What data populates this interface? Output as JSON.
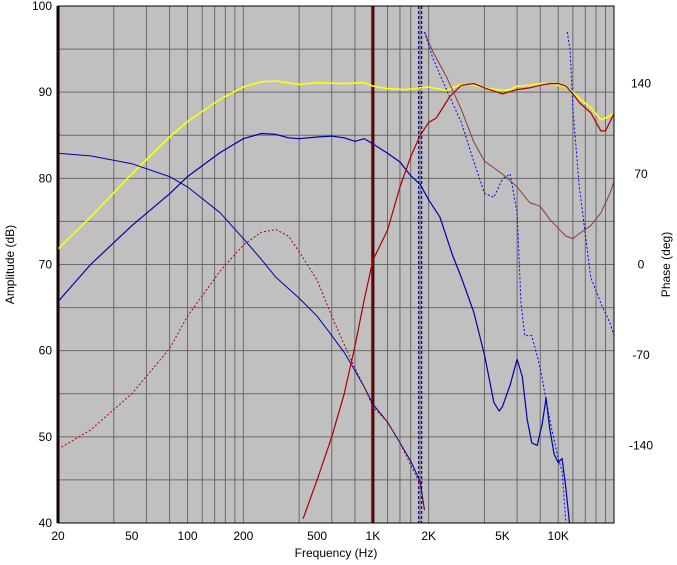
{
  "chart_data": {
    "type": "line",
    "xlabel": "Frequency (Hz)",
    "ylabel": "Amplitude (dB)",
    "y2label": "Phase (deg)",
    "x_scale": "log",
    "xlim": [
      20,
      20000
    ],
    "ylim": [
      40,
      100
    ],
    "y2lim": [
      -200,
      200
    ],
    "grid": true,
    "plot_background": "#c0c0c0",
    "x_ticks": [
      {
        "value": 20,
        "label": "20"
      },
      {
        "value": 50,
        "label": "50"
      },
      {
        "value": 100,
        "label": "100"
      },
      {
        "value": 200,
        "label": "200"
      },
      {
        "value": 500,
        "label": "500"
      },
      {
        "value": 1000,
        "label": "1K"
      },
      {
        "value": 2000,
        "label": "2K"
      },
      {
        "value": 5000,
        "label": "5K"
      },
      {
        "value": 10000,
        "label": "10K"
      }
    ],
    "y_ticks": [
      {
        "value": 40,
        "label": "40"
      },
      {
        "value": 50,
        "label": "50"
      },
      {
        "value": 60,
        "label": "60"
      },
      {
        "value": 70,
        "label": "70"
      },
      {
        "value": 80,
        "label": "80"
      },
      {
        "value": 90,
        "label": "90"
      },
      {
        "value": 100,
        "label": "100"
      }
    ],
    "y2_ticks": [
      {
        "value": 140,
        "label": "140"
      },
      {
        "value": 70,
        "label": "70"
      },
      {
        "value": 0,
        "label": "0"
      },
      {
        "value": -70,
        "label": "-70"
      },
      {
        "value": -140,
        "label": "-140"
      }
    ],
    "vertical_markers": [
      {
        "x": 20,
        "color": "#8b0000"
      },
      {
        "x": 1000,
        "color": "#8b0000"
      },
      {
        "x": 1800,
        "color": "#00008b",
        "dashed": true
      }
    ],
    "series": [
      {
        "color": "#ffff00",
        "axis": "left",
        "style": "solid",
        "width": 1.6,
        "points": [
          [
            20,
            71.8
          ],
          [
            30,
            75.5
          ],
          [
            50,
            80.5
          ],
          [
            80,
            84.8
          ],
          [
            100,
            86.6
          ],
          [
            150,
            89.2
          ],
          [
            200,
            90.6
          ],
          [
            250,
            91.2
          ],
          [
            300,
            91.3
          ],
          [
            400,
            90.9
          ],
          [
            500,
            91.1
          ],
          [
            700,
            91.0
          ],
          [
            900,
            91.1
          ],
          [
            1000,
            90.7
          ],
          [
            1200,
            90.4
          ],
          [
            1500,
            90.3
          ],
          [
            2000,
            90.6
          ],
          [
            2500,
            90.2
          ],
          [
            3000,
            90.9
          ],
          [
            3500,
            90.8
          ],
          [
            4000,
            90.5
          ],
          [
            5000,
            90.2
          ],
          [
            5500,
            90.3
          ],
          [
            6000,
            90.7
          ],
          [
            7000,
            90.8
          ],
          [
            8000,
            91.0
          ],
          [
            9000,
            91.0
          ],
          [
            10000,
            90.8
          ],
          [
            11000,
            90.6
          ],
          [
            12000,
            90.0
          ],
          [
            13000,
            89.3
          ],
          [
            15000,
            88.2
          ],
          [
            17000,
            86.8
          ],
          [
            18000,
            87.0
          ],
          [
            20000,
            87.5
          ]
        ]
      },
      {
        "color": "#0000aa",
        "axis": "left",
        "style": "solid",
        "width": 1.2,
        "points": [
          [
            20,
            65.7
          ],
          [
            30,
            70.0
          ],
          [
            50,
            74.5
          ],
          [
            80,
            78.2
          ],
          [
            100,
            80.2
          ],
          [
            150,
            83.0
          ],
          [
            200,
            84.6
          ],
          [
            250,
            85.2
          ],
          [
            300,
            85.1
          ],
          [
            350,
            84.7
          ],
          [
            400,
            84.6
          ],
          [
            500,
            84.8
          ],
          [
            600,
            84.9
          ],
          [
            700,
            84.7
          ],
          [
            800,
            84.3
          ],
          [
            900,
            84.6
          ],
          [
            1000,
            84.0
          ],
          [
            1200,
            82.9
          ],
          [
            1400,
            81.9
          ],
          [
            1600,
            80.3
          ],
          [
            1800,
            79.3
          ],
          [
            2000,
            77.5
          ],
          [
            2300,
            75.5
          ],
          [
            2700,
            71.0
          ],
          [
            3000,
            68.5
          ],
          [
            3500,
            64.5
          ],
          [
            4000,
            59.5
          ],
          [
            4500,
            54.0
          ],
          [
            4800,
            53.0
          ],
          [
            5000,
            53.5
          ],
          [
            5500,
            56.0
          ],
          [
            6000,
            59.0
          ],
          [
            6400,
            57.0
          ],
          [
            6800,
            52.0
          ],
          [
            7200,
            49.3
          ],
          [
            7700,
            49.0
          ],
          [
            8200,
            51.5
          ],
          [
            8600,
            54.5
          ],
          [
            9000,
            51.0
          ],
          [
            9500,
            48.0
          ],
          [
            10000,
            47.0
          ],
          [
            10500,
            47.5
          ],
          [
            11000,
            44.0
          ],
          [
            11500,
            40.0
          ]
        ]
      },
      {
        "color": "#0000aa",
        "axis": "right",
        "style": "solid",
        "width": 1.0,
        "points": [
          [
            20,
            86
          ],
          [
            30,
            84
          ],
          [
            50,
            78
          ],
          [
            80,
            68
          ],
          [
            100,
            60
          ],
          [
            150,
            40
          ],
          [
            200,
            20
          ],
          [
            250,
            4
          ],
          [
            300,
            -10
          ],
          [
            400,
            -26
          ],
          [
            500,
            -40
          ],
          [
            600,
            -55
          ],
          [
            700,
            -68
          ],
          [
            800,
            -82
          ],
          [
            900,
            -95
          ],
          [
            1000,
            -108
          ],
          [
            1200,
            -122
          ],
          [
            1400,
            -138
          ],
          [
            1600,
            -152
          ],
          [
            1800,
            -168
          ],
          [
            1900,
            -190
          ]
        ]
      },
      {
        "color": "#aa0000",
        "axis": "right",
        "style": "dashed",
        "width": 1.0,
        "points": [
          [
            20,
            -143
          ],
          [
            30,
            -128
          ],
          [
            50,
            -100
          ],
          [
            80,
            -65
          ],
          [
            100,
            -40
          ],
          [
            150,
            -5
          ],
          [
            200,
            15
          ],
          [
            250,
            25
          ],
          [
            300,
            27
          ],
          [
            350,
            22
          ],
          [
            400,
            10
          ],
          [
            500,
            -12
          ],
          [
            600,
            -40
          ],
          [
            700,
            -62
          ],
          [
            800,
            -80
          ],
          [
            900,
            -95
          ],
          [
            1000,
            -110
          ],
          [
            1200,
            -122
          ],
          [
            1400,
            -138
          ],
          [
            1600,
            -155
          ],
          [
            1800,
            -170
          ],
          [
            1900,
            -190
          ]
        ]
      },
      {
        "color": "#aa0000",
        "axis": "left",
        "style": "solid",
        "width": 1.2,
        "points": [
          [
            420,
            40.5
          ],
          [
            500,
            45
          ],
          [
            600,
            50
          ],
          [
            700,
            55
          ],
          [
            800,
            60.5
          ],
          [
            900,
            66
          ],
          [
            1000,
            70.5
          ],
          [
            1200,
            74
          ],
          [
            1400,
            79
          ],
          [
            1600,
            82.5
          ],
          [
            1800,
            85
          ],
          [
            2000,
            86.5
          ],
          [
            2200,
            87
          ],
          [
            2600,
            89.5
          ],
          [
            3000,
            90.8
          ],
          [
            3500,
            91
          ],
          [
            4000,
            90.5
          ],
          [
            5000,
            89.8
          ],
          [
            6000,
            90.3
          ],
          [
            7000,
            90.5
          ],
          [
            8000,
            90.8
          ],
          [
            9000,
            91
          ],
          [
            10000,
            91
          ],
          [
            11000,
            90.7
          ],
          [
            12000,
            89.8
          ],
          [
            13000,
            88.8
          ],
          [
            15000,
            87.6
          ],
          [
            17000,
            85.5
          ],
          [
            18000,
            85.5
          ],
          [
            20000,
            87.5
          ]
        ]
      },
      {
        "color": "#8b3a3a",
        "axis": "right",
        "style": "solid",
        "width": 1.0,
        "points": [
          [
            1900,
            180
          ],
          [
            2100,
            165
          ],
          [
            2500,
            145
          ],
          [
            3000,
            120
          ],
          [
            3500,
            95
          ],
          [
            4000,
            80
          ],
          [
            5000,
            70
          ],
          [
            6000,
            60
          ],
          [
            7000,
            48
          ],
          [
            8000,
            45
          ],
          [
            9000,
            35
          ],
          [
            10000,
            28
          ],
          [
            11000,
            22
          ],
          [
            12000,
            20
          ],
          [
            13000,
            24
          ],
          [
            15000,
            30
          ],
          [
            17000,
            40
          ],
          [
            19000,
            55
          ],
          [
            20000,
            64
          ]
        ]
      },
      {
        "color": "#0000ff",
        "axis": "right",
        "style": "dashed",
        "width": 1.0,
        "points": [
          [
            1900,
            180
          ],
          [
            2100,
            160
          ],
          [
            2500,
            135
          ],
          [
            3000,
            110
          ],
          [
            3500,
            80
          ],
          [
            4000,
            55
          ],
          [
            4500,
            52
          ],
          [
            5000,
            66
          ],
          [
            5500,
            70
          ],
          [
            6000,
            40
          ],
          [
            6300,
            -30
          ],
          [
            6600,
            -55
          ],
          [
            7200,
            -55
          ],
          [
            8000,
            -80
          ],
          [
            9000,
            -120
          ],
          [
            10000,
            -150
          ],
          [
            10500,
            -160
          ],
          [
            11000,
            -200
          ],
          [
            11200,
            180
          ],
          [
            11600,
            165
          ],
          [
            12000,
            120
          ],
          [
            13000,
            60
          ],
          [
            15000,
            -10
          ],
          [
            17000,
            -30
          ],
          [
            19000,
            -45
          ],
          [
            20000,
            -55
          ]
        ]
      }
    ]
  }
}
